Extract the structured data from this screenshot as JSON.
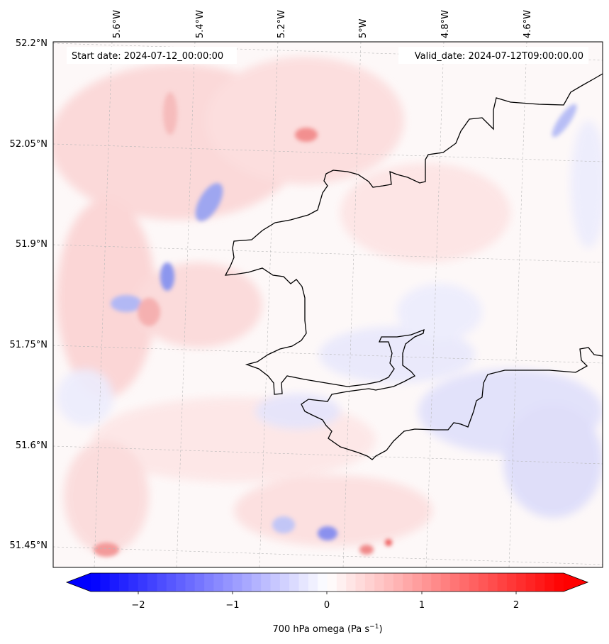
{
  "map": {
    "start_label": "Start date: 2024-07-12_00:00:00",
    "valid_label": "Valid_date: 2024-07-12T09:00:00.00",
    "lon_labels": [
      "5.6°W",
      "5.4°W",
      "5.2°W",
      "5°W",
      "4.8°W",
      "4.6°W"
    ],
    "lat_labels": [
      "52.2°N",
      "52.05°N",
      "51.9°N",
      "51.75°N",
      "51.6°N",
      "51.45°N"
    ],
    "field": "700 hPa omega",
    "units": "Pa s",
    "coast_color": "#000000",
    "grid_style": "dashed gray graticule"
  },
  "colorbar": {
    "ticks": [
      "−2",
      "−1",
      "0",
      "1",
      "2"
    ],
    "label_main": "700 hPa omega (Pa s",
    "label_sup": "−1",
    "label_end": ")",
    "min": -2.7,
    "max": 2.7,
    "cmap": "bwr",
    "low_color": "#0000ff",
    "mid_color": "#ffffff",
    "high_color": "#ff0000",
    "extend": "both"
  }
}
